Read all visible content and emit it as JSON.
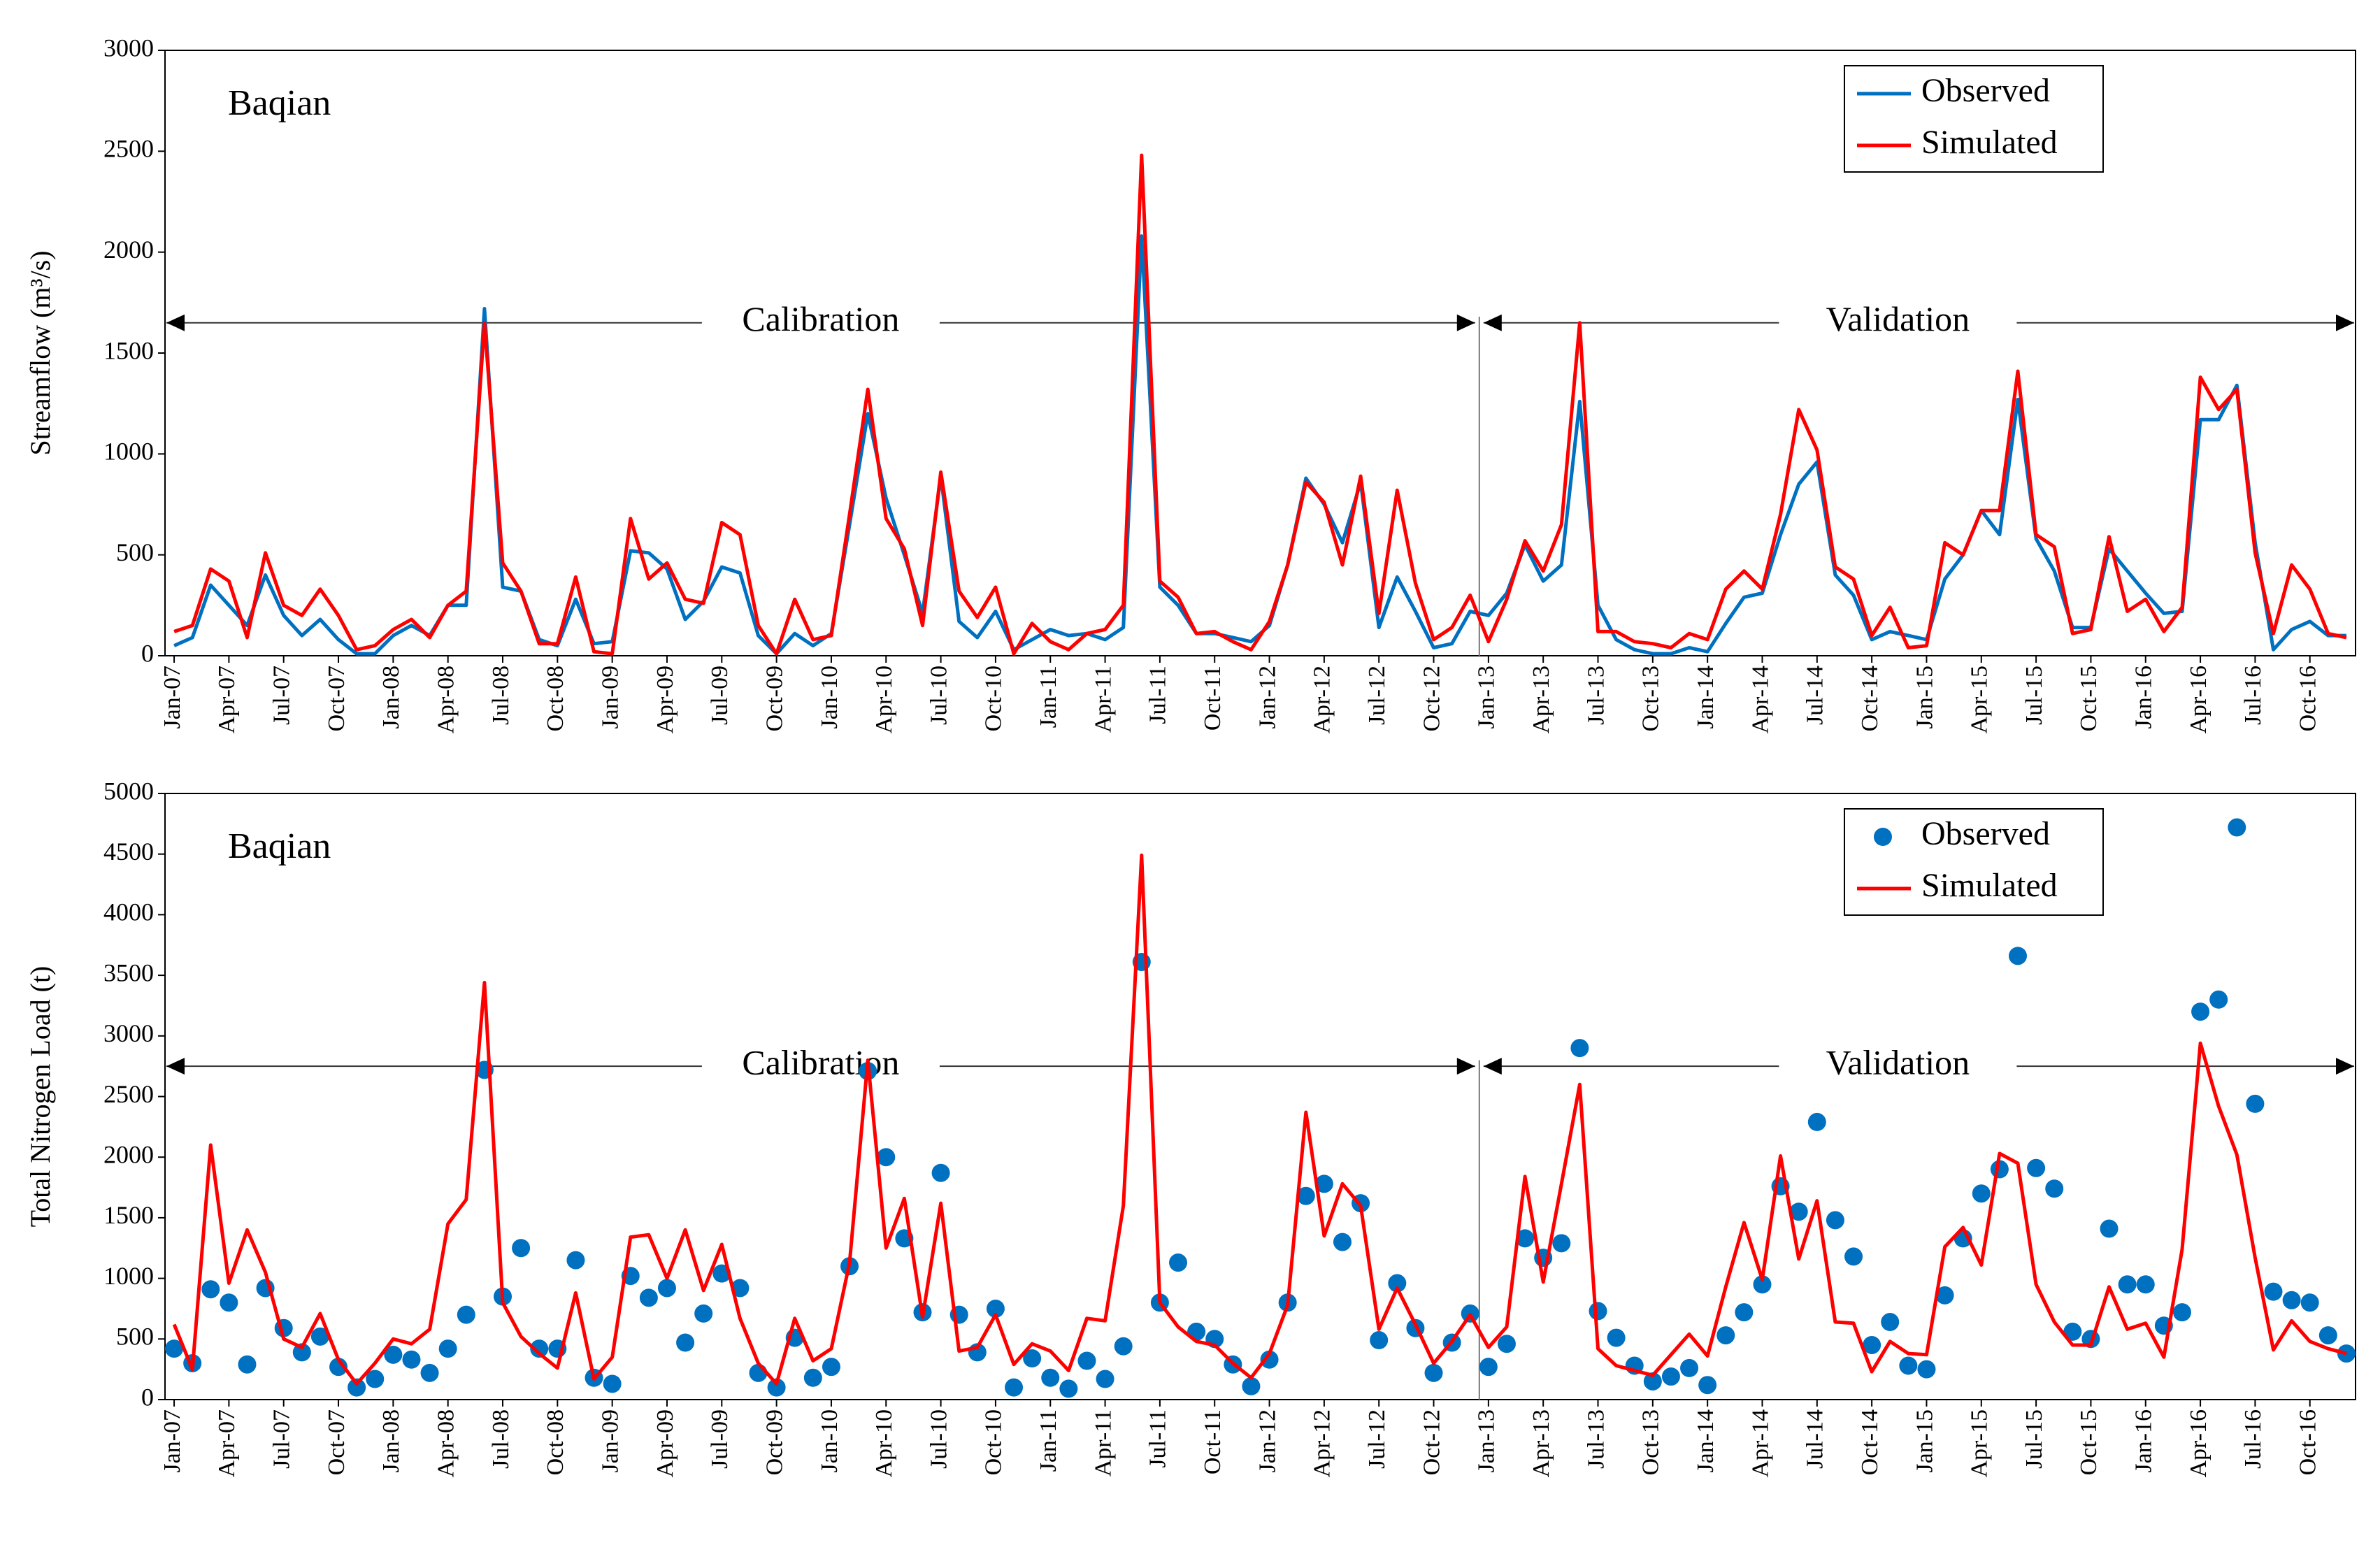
{
  "chart_data": [
    {
      "type": "line",
      "title": "Baqian",
      "ylabel": "Streamflow (m³/s)",
      "legend": "upper right",
      "annotations": [
        "Calibration",
        "Validation"
      ],
      "categories": [
        "Jan-07",
        null,
        null,
        "Apr-07",
        null,
        null,
        "Jul-07",
        null,
        null,
        "Oct-07",
        null,
        null,
        "Jan-08",
        null,
        null,
        "Apr-08",
        null,
        null,
        "Jul-08",
        null,
        null,
        "Oct-08",
        null,
        null,
        "Jan-09",
        null,
        null,
        "Apr-09",
        null,
        null,
        "Jul-09",
        null,
        null,
        "Oct-09",
        null,
        null,
        "Jan-10",
        null,
        null,
        "Apr-10",
        null,
        null,
        "Jul-10",
        null,
        null,
        "Oct-10",
        null,
        null,
        "Jan-11",
        null,
        null,
        "Apr-11",
        null,
        null,
        "Jul-11",
        null,
        null,
        "Oct-11",
        null,
        null,
        "Jan-12",
        null,
        null,
        "Apr-12",
        null,
        null,
        "Jul-12",
        null,
        null,
        "Oct-12",
        null,
        null,
        "Jan-13",
        null,
        null,
        "Apr-13",
        null,
        null,
        "Jul-13",
        null,
        null,
        "Oct-13",
        null,
        null,
        "Jan-14",
        null,
        null,
        "Apr-14",
        null,
        null,
        "Jul-14",
        null,
        null,
        "Oct-14",
        null,
        null,
        "Jan-15",
        null,
        null,
        "Apr-15",
        null,
        null,
        "Jul-15",
        null,
        null,
        "Oct-15",
        null,
        null,
        "Jan-16",
        null,
        null,
        "Apr-16",
        null,
        null,
        "Jul-16",
        null,
        null,
        "Oct-16",
        null,
        null
      ],
      "ylim": [
        0,
        3000
      ],
      "yticks": [
        0,
        500,
        1000,
        1500,
        2000,
        2500,
        3000
      ],
      "series": [
        {
          "name": "Observed",
          "color": "#0070c0",
          "mode": "line",
          "values": [
            50,
            90,
            350,
            250,
            150,
            400,
            200,
            100,
            180,
            80,
            10,
            10,
            100,
            150,
            100,
            250,
            250,
            1720,
            340,
            320,
            80,
            50,
            280,
            60,
            70,
            520,
            510,
            430,
            180,
            270,
            440,
            410,
            100,
            10,
            110,
            50,
            110,
            650,
            1200,
            780,
            500,
            210,
            890,
            170,
            90,
            220,
            30,
            80,
            130,
            100,
            110,
            80,
            140,
            2080,
            340,
            250,
            110,
            110,
            90,
            70,
            150,
            450,
            880,
            750,
            560,
            860,
            140,
            390,
            220,
            40,
            60,
            220,
            200,
            310,
            550,
            370,
            450,
            1260,
            250,
            80,
            30,
            10,
            10,
            40,
            20,
            160,
            290,
            310,
            600,
            850,
            960,
            400,
            300,
            80,
            120,
            100,
            80,
            380,
            500,
            720,
            600,
            1270,
            580,
            420,
            140,
            140,
            530,
            420,
            310,
            210,
            220,
            1170,
            1170,
            1340,
            560,
            30,
            130,
            170,
            100,
            100
          ]
        },
        {
          "name": "Simulated",
          "color": "#ff0000",
          "mode": "line",
          "values": [
            120,
            150,
            430,
            370,
            90,
            510,
            250,
            200,
            330,
            200,
            30,
            50,
            130,
            180,
            90,
            250,
            320,
            1650,
            460,
            320,
            60,
            60,
            390,
            20,
            10,
            680,
            380,
            460,
            280,
            260,
            660,
            600,
            150,
            10,
            280,
            80,
            100,
            700,
            1320,
            680,
            530,
            150,
            910,
            320,
            190,
            340,
            10,
            160,
            70,
            30,
            110,
            130,
            250,
            2480,
            370,
            290,
            110,
            120,
            70,
            30,
            170,
            450,
            860,
            760,
            450,
            890,
            210,
            820,
            360,
            80,
            140,
            300,
            70,
            280,
            570,
            420,
            650,
            1650,
            120,
            120,
            70,
            60,
            40,
            110,
            80,
            330,
            420,
            330,
            700,
            1220,
            1020,
            440,
            380,
            100,
            240,
            40,
            50,
            560,
            500,
            720,
            720,
            1410,
            600,
            540,
            110,
            130,
            590,
            220,
            280,
            120,
            240,
            1380,
            1220,
            1320,
            510,
            110,
            450,
            330,
            110,
            90
          ]
        }
      ]
    },
    {
      "type": "line",
      "title": "Baqian",
      "ylabel": "Total Nitrogen Load (t)",
      "legend": "upper right",
      "annotations": [
        "Calibration",
        "Validation"
      ],
      "categories": [
        "Jan-07",
        null,
        null,
        "Apr-07",
        null,
        null,
        "Jul-07",
        null,
        null,
        "Oct-07",
        null,
        null,
        "Jan-08",
        null,
        null,
        "Apr-08",
        null,
        null,
        "Jul-08",
        null,
        null,
        "Oct-08",
        null,
        null,
        "Jan-09",
        null,
        null,
        "Apr-09",
        null,
        null,
        "Jul-09",
        null,
        null,
        "Oct-09",
        null,
        null,
        "Jan-10",
        null,
        null,
        "Apr-10",
        null,
        null,
        "Jul-10",
        null,
        null,
        "Oct-10",
        null,
        null,
        "Jan-11",
        null,
        null,
        "Apr-11",
        null,
        null,
        "Jul-11",
        null,
        null,
        "Oct-11",
        null,
        null,
        "Jan-12",
        null,
        null,
        "Apr-12",
        null,
        null,
        "Jul-12",
        null,
        null,
        "Oct-12",
        null,
        null,
        "Jan-13",
        null,
        null,
        "Apr-13",
        null,
        null,
        "Jul-13",
        null,
        null,
        "Oct-13",
        null,
        null,
        "Jan-14",
        null,
        null,
        "Apr-14",
        null,
        null,
        "Jul-14",
        null,
        null,
        "Oct-14",
        null,
        null,
        "Jan-15",
        null,
        null,
        "Apr-15",
        null,
        null,
        "Jul-15",
        null,
        null,
        "Oct-15",
        null,
        null,
        "Jan-16",
        null,
        null,
        "Apr-16",
        null,
        null,
        "Jul-16",
        null,
        null,
        "Oct-16",
        null,
        null
      ],
      "ylim": [
        0,
        5000
      ],
      "yticks": [
        0,
        500,
        1000,
        1500,
        2000,
        2500,
        3000,
        3500,
        4000,
        4500,
        5000
      ],
      "series": [
        {
          "name": "Observed",
          "color": "#0070c0",
          "mode": "markers",
          "values": [
            420,
            300,
            910,
            800,
            290,
            920,
            590,
            390,
            520,
            270,
            100,
            170,
            370,
            330,
            220,
            420,
            700,
            2720,
            850,
            1250,
            420,
            420,
            1150,
            180,
            130,
            1020,
            840,
            920,
            470,
            710,
            1040,
            920,
            220,
            100,
            510,
            180,
            270,
            1100,
            2710,
            2000,
            1330,
            720,
            1870,
            700,
            390,
            750,
            100,
            340,
            180,
            90,
            320,
            170,
            440,
            3610,
            800,
            1130,
            560,
            500,
            290,
            110,
            330,
            800,
            1680,
            1780,
            1300,
            1620,
            490,
            960,
            590,
            220,
            470,
            710,
            270,
            460,
            1330,
            1170,
            1290,
            2900,
            730,
            510,
            280,
            150,
            190,
            260,
            120,
            530,
            720,
            950,
            1760,
            1550,
            2290,
            1480,
            1180,
            450,
            640,
            280,
            250,
            860,
            1330,
            1700,
            1900,
            3660,
            1910,
            1740,
            560,
            500,
            1410,
            950,
            950,
            610,
            720,
            3200,
            3300,
            4720,
            2440,
            890,
            820,
            800,
            530,
            380
          ]
        },
        {
          "name": "Simulated",
          "color": "#ff0000",
          "mode": "line",
          "values": [
            620,
            250,
            2100,
            960,
            1400,
            1050,
            500,
            430,
            710,
            330,
            130,
            300,
            500,
            460,
            580,
            1450,
            1650,
            3440,
            800,
            520,
            380,
            260,
            880,
            170,
            350,
            1340,
            1360,
            1000,
            1400,
            900,
            1280,
            670,
            300,
            130,
            670,
            320,
            420,
            1130,
            2800,
            1250,
            1660,
            680,
            1620,
            400,
            430,
            700,
            290,
            460,
            400,
            240,
            670,
            650,
            1600,
            4490,
            800,
            600,
            480,
            450,
            300,
            180,
            380,
            780,
            2370,
            1350,
            1780,
            1600,
            580,
            920,
            620,
            300,
            480,
            700,
            430,
            600,
            1840,
            970,
            1780,
            2600,
            420,
            280,
            240,
            200,
            370,
            540,
            360,
            930,
            1460,
            990,
            2010,
            1160,
            1640,
            640,
            630,
            230,
            480,
            380,
            370,
            1260,
            1420,
            1110,
            2030,
            1950,
            950,
            640,
            450,
            450,
            930,
            580,
            630,
            350,
            1240,
            2940,
            2420,
            2020,
            1170,
            410,
            650,
            480,
            420,
            380
          ]
        }
      ]
    }
  ]
}
